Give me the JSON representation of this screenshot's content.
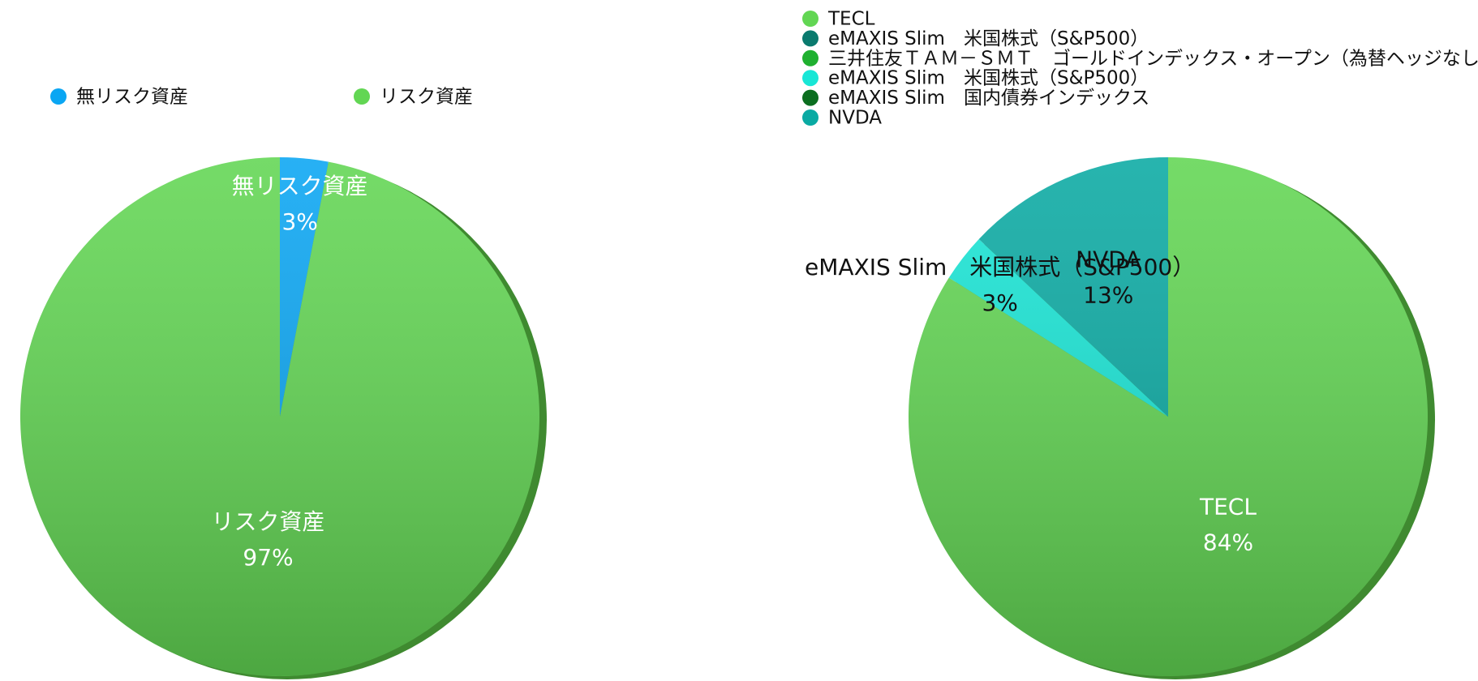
{
  "chart_data": [
    {
      "type": "pie",
      "categories": [
        "無リスク資産",
        "リスク資産"
      ],
      "values": [
        3,
        97
      ],
      "value_labels": [
        "3%",
        "97%"
      ],
      "colors": [
        "#0aa6f3",
        "#62d653"
      ],
      "label_colors": [
        "#ffffff",
        "#ffffff"
      ],
      "legend": "top"
    },
    {
      "type": "pie",
      "categories": [
        "TECL",
        "eMAXIS Slim　米国株式（S&P500）",
        "三井住友ＴＡＭ－ＳＭＴ　ゴールドインデックス・オープン（為替ヘッジなし）",
        "eMAXIS Slim　米国株式（S&P500）",
        "eMAXIS Slim　国内債券インデックス",
        "NVDA"
      ],
      "values": [
        84,
        0,
        0,
        3,
        0,
        13
      ],
      "value_labels": [
        "84%",
        null,
        null,
        "3%",
        null,
        "13%"
      ],
      "colors": [
        "#62d653",
        "#0a7a6e",
        "#1fb030",
        "#18e6d6",
        "#0b6e1f",
        "#0aaaa3"
      ],
      "label_colors": [
        "#ffffff",
        "#111111",
        "#111111",
        "#111111",
        "#111111",
        "#111111"
      ],
      "legend": "top-left"
    }
  ]
}
